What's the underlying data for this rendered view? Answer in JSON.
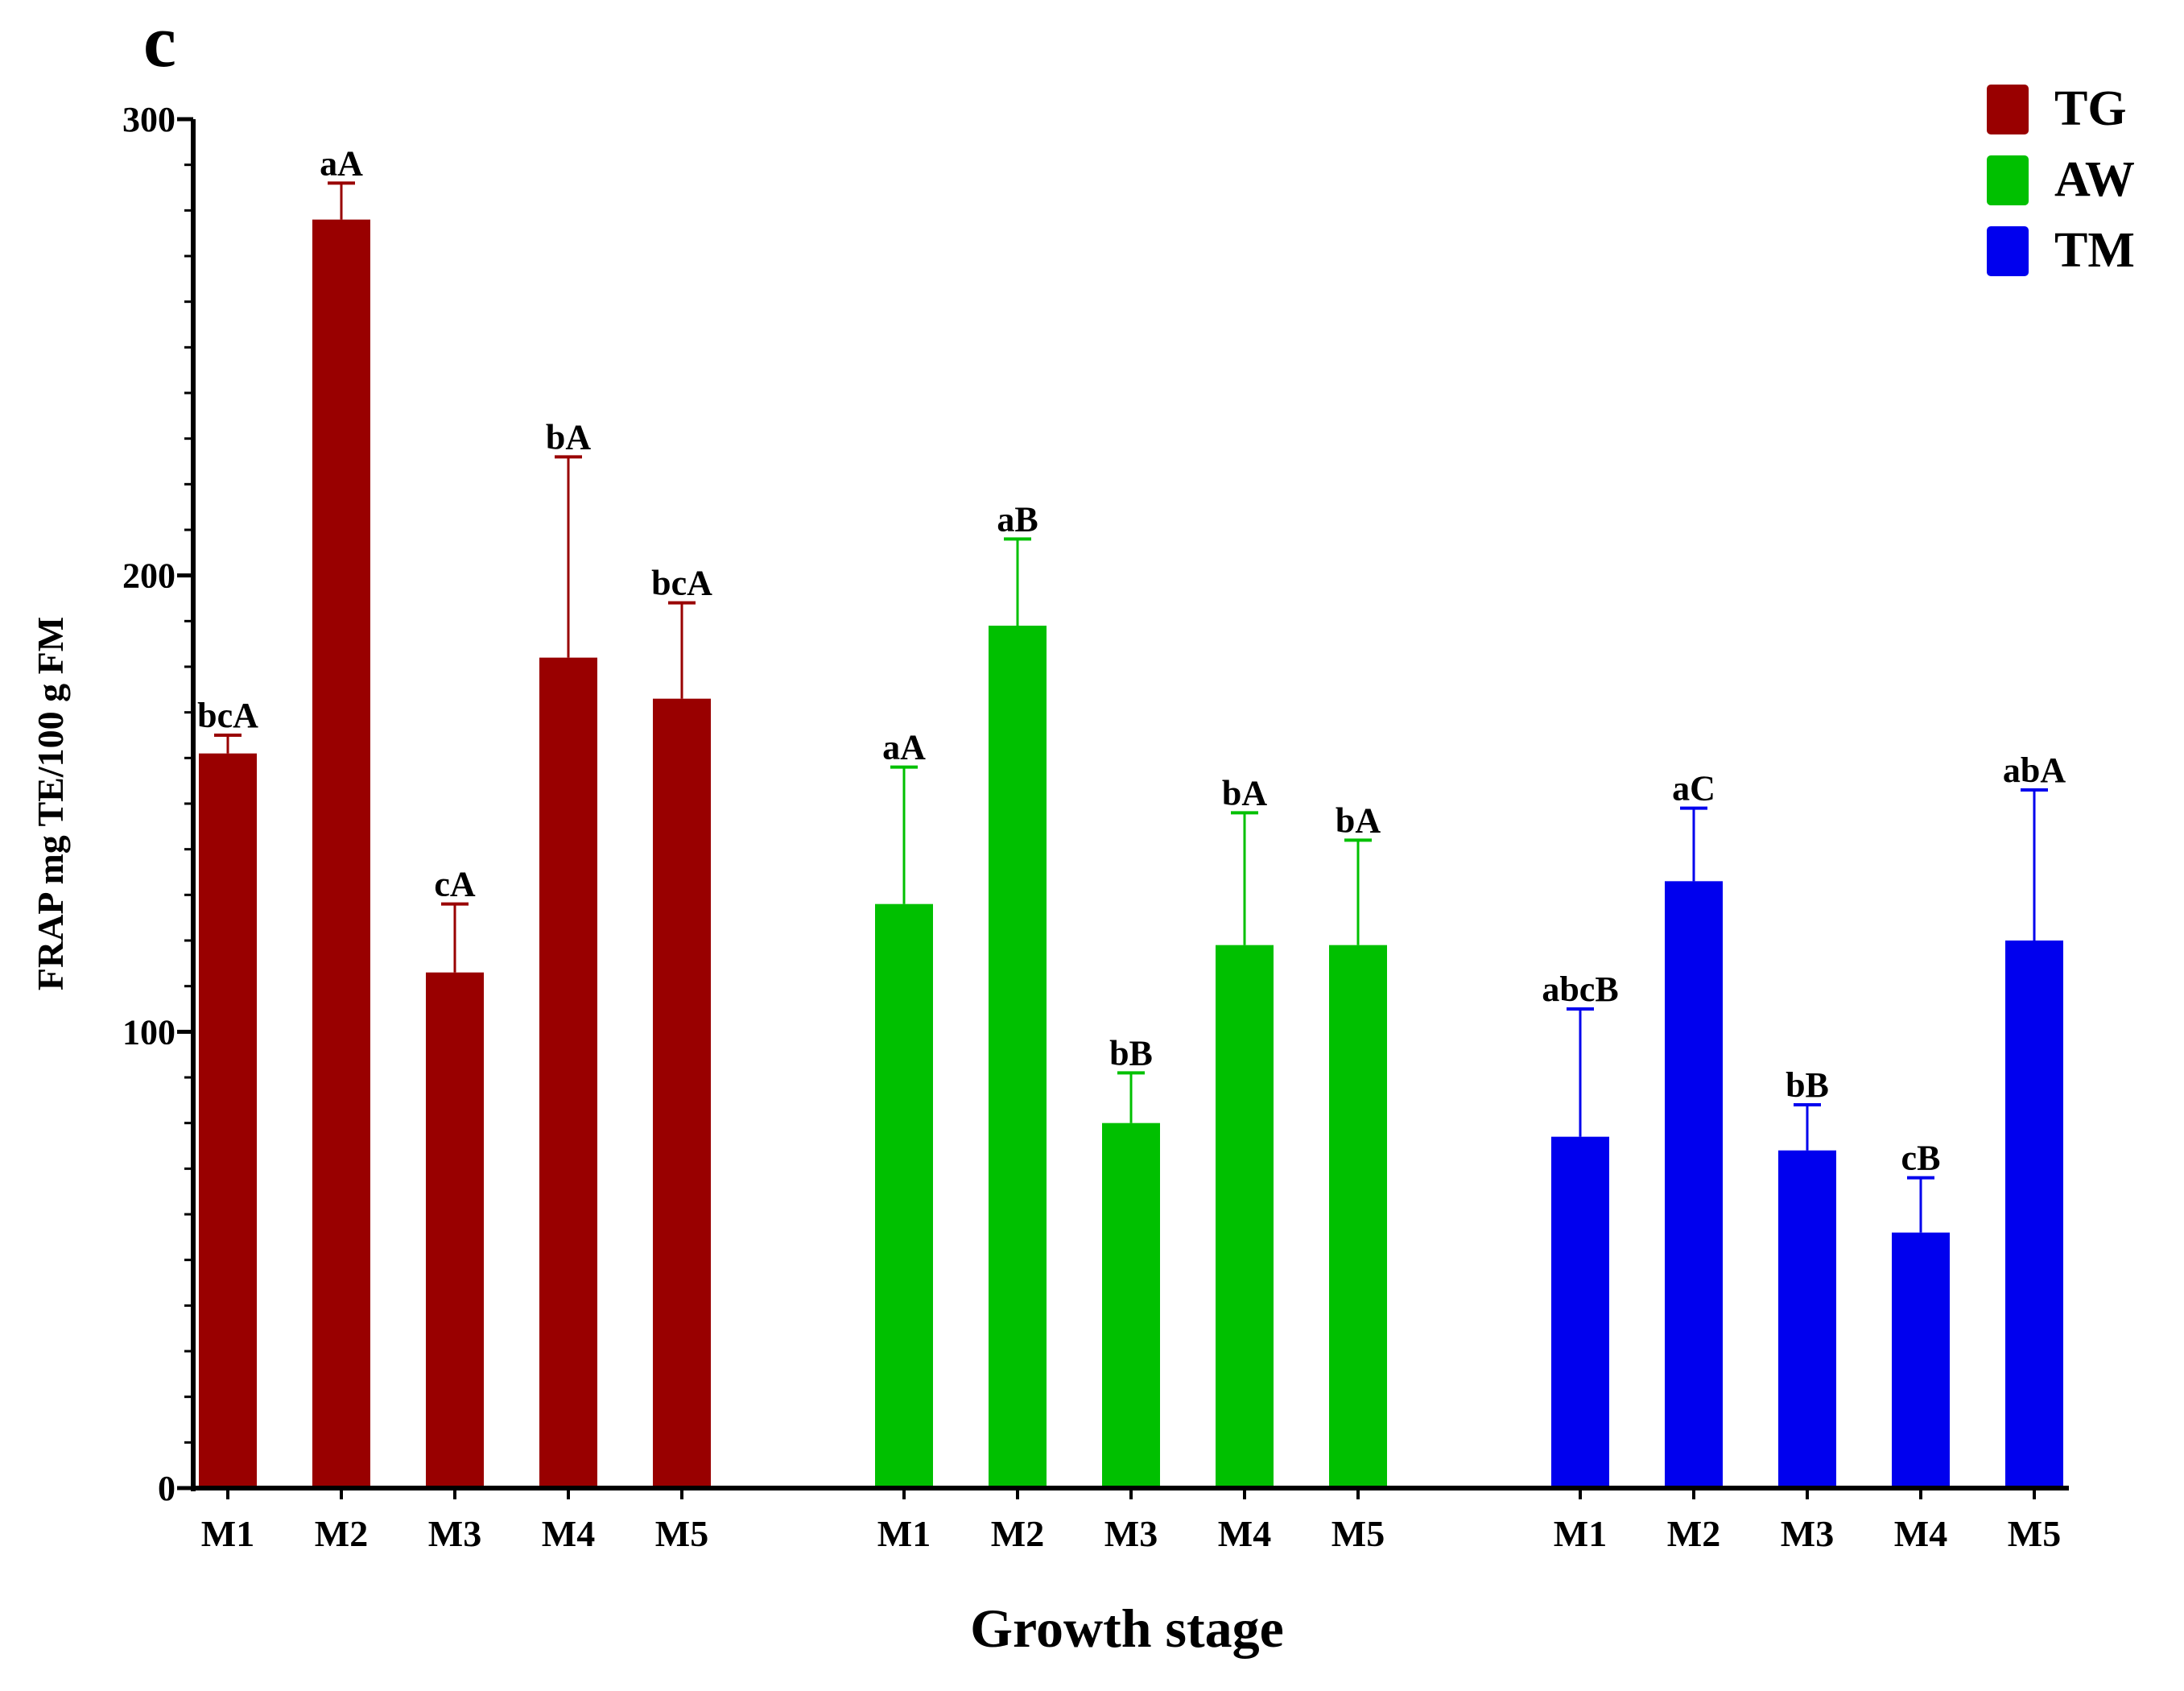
{
  "chart_data": {
    "type": "bar",
    "panel_label": "c",
    "xlabel": "Growth stage",
    "ylabel": "FRAP mg TE/100 g FM",
    "ylim": [
      0,
      300
    ],
    "yticks": [
      0,
      100,
      200,
      300
    ],
    "grid": false,
    "legend_position": "top-right",
    "categories": [
      "M1",
      "M2",
      "M3",
      "M4",
      "M5"
    ],
    "series": [
      {
        "name": "TG",
        "color": "#990000",
        "values": [
          161,
          278,
          113,
          182,
          173
        ],
        "errors": [
          4,
          8,
          15,
          44,
          21
        ],
        "labels": [
          "bcA",
          "aA",
          "cA",
          "bA",
          "bcA"
        ]
      },
      {
        "name": "AW",
        "color": "#00c000",
        "values": [
          128,
          189,
          80,
          119,
          119
        ],
        "errors": [
          30,
          19,
          11,
          29,
          23
        ],
        "labels": [
          "aA",
          "aB",
          "bB",
          "bA",
          "bA"
        ]
      },
      {
        "name": "TM",
        "color": "#0000ee",
        "values": [
          77,
          133,
          74,
          56,
          120
        ],
        "errors": [
          28,
          16,
          10,
          12,
          33
        ],
        "labels": [
          "abcB",
          "aC",
          "bB",
          "cB",
          "abA"
        ]
      }
    ]
  }
}
